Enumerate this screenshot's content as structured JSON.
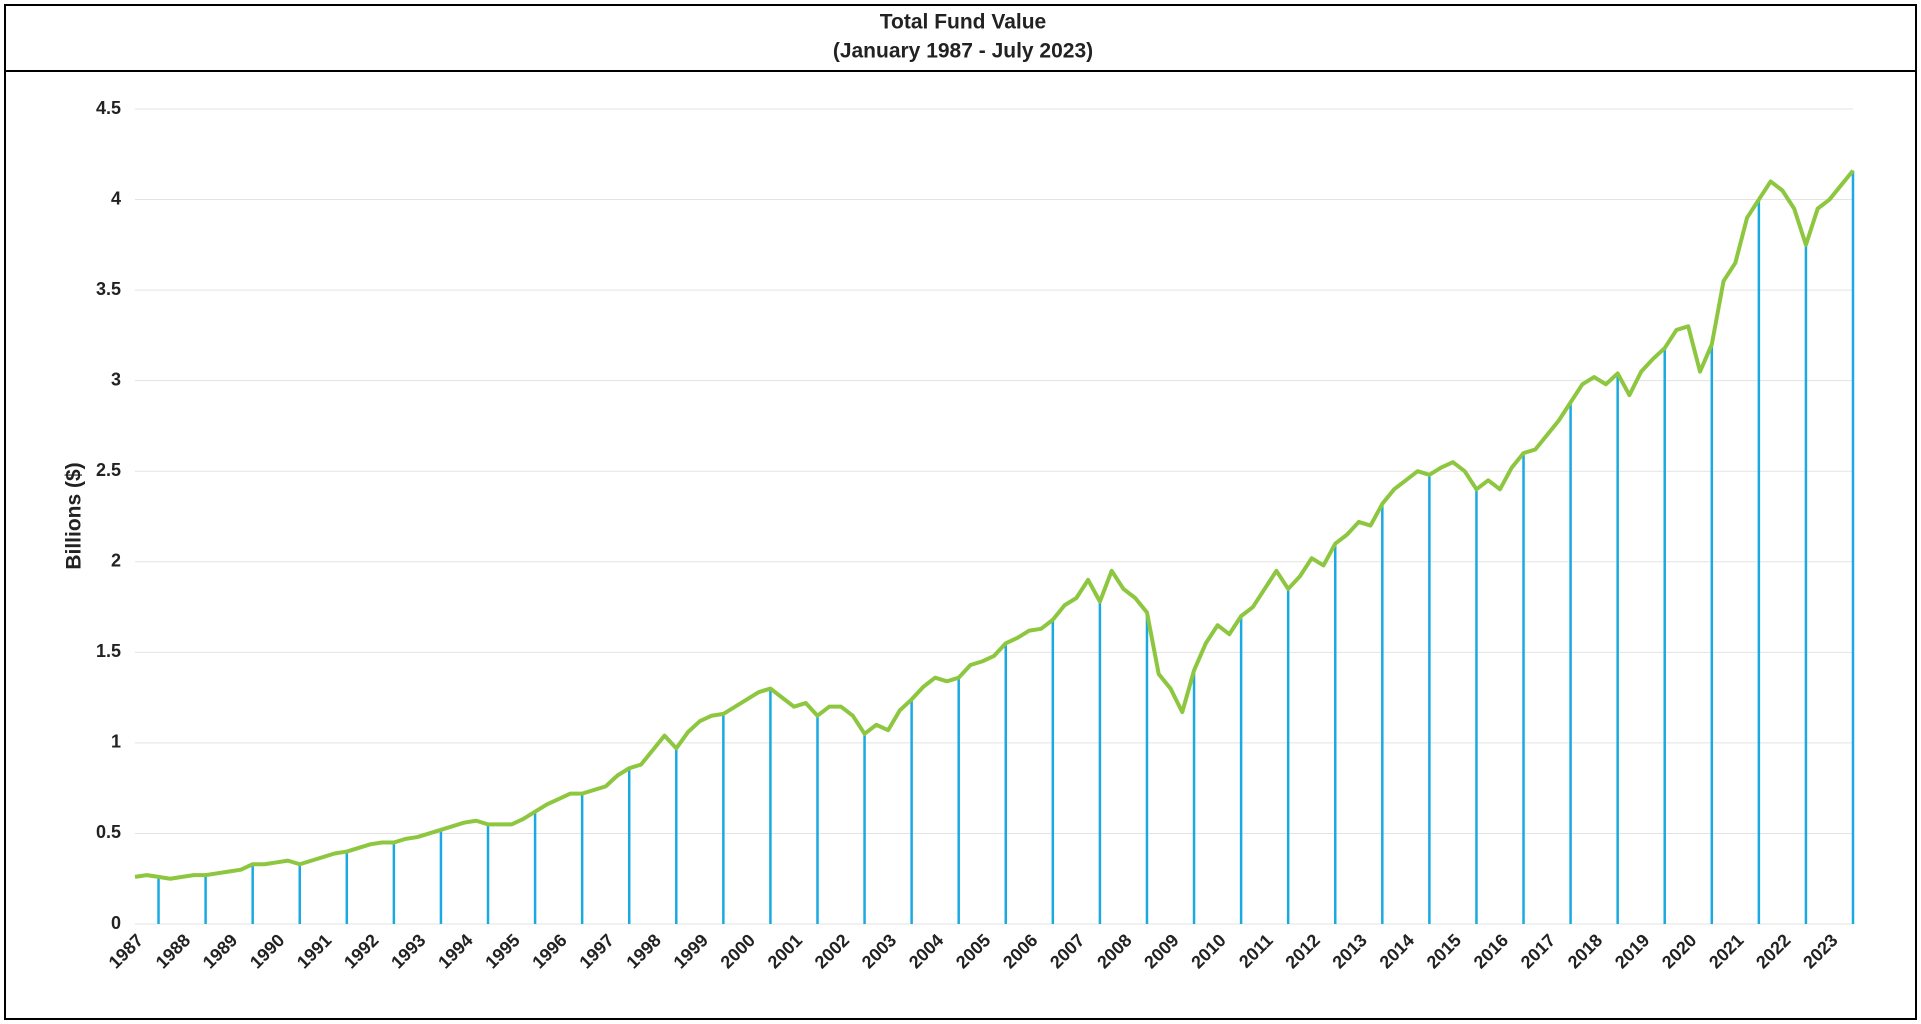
{
  "chart_data": {
    "type": "line",
    "title": "Total Fund Value",
    "subtitle": "(January 1987 - July 2023)",
    "y_label": "Billions ($)",
    "xlim": [
      1987,
      2023.5
    ],
    "xticks": [
      1987,
      1988,
      1989,
      1990,
      1991,
      1992,
      1993,
      1994,
      1995,
      1996,
      1997,
      1998,
      1999,
      2000,
      2001,
      2002,
      2003,
      2004,
      2005,
      2006,
      2007,
      2008,
      2009,
      2010,
      2011,
      2012,
      2013,
      2014,
      2015,
      2016,
      2017,
      2018,
      2019,
      2020,
      2021,
      2022,
      2023
    ],
    "ylim": [
      0,
      4.5
    ],
    "yticks": [
      0,
      0.5,
      1,
      1.5,
      2,
      2.5,
      3,
      3.5,
      4,
      4.5
    ],
    "grid": true,
    "series": [
      {
        "style": "line",
        "color": "#8dc63f",
        "x": [
          1987,
          1987.25,
          1987.5,
          1987.75,
          1988,
          1988.25,
          1988.5,
          1988.75,
          1989,
          1989.25,
          1989.5,
          1989.75,
          1990,
          1990.25,
          1990.5,
          1990.75,
          1991,
          1991.25,
          1991.5,
          1991.75,
          1992,
          1992.25,
          1992.5,
          1992.75,
          1993,
          1993.25,
          1993.5,
          1993.75,
          1994,
          1994.25,
          1994.5,
          1994.75,
          1995,
          1995.25,
          1995.5,
          1995.75,
          1996,
          1996.25,
          1996.5,
          1996.75,
          1997,
          1997.25,
          1997.5,
          1997.75,
          1998,
          1998.25,
          1998.5,
          1998.75,
          1999,
          1999.25,
          1999.5,
          1999.75,
          2000,
          2000.25,
          2000.5,
          2000.75,
          2001,
          2001.25,
          2001.5,
          2001.75,
          2002,
          2002.25,
          2002.5,
          2002.75,
          2003,
          2003.25,
          2003.5,
          2003.75,
          2004,
          2004.25,
          2004.5,
          2004.75,
          2005,
          2005.25,
          2005.5,
          2005.75,
          2006,
          2006.25,
          2006.5,
          2006.75,
          2007,
          2007.25,
          2007.5,
          2007.75,
          2008,
          2008.25,
          2008.5,
          2008.75,
          2009,
          2009.25,
          2009.5,
          2009.75,
          2010,
          2010.25,
          2010.5,
          2010.75,
          2011,
          2011.25,
          2011.5,
          2011.75,
          2012,
          2012.25,
          2012.5,
          2012.75,
          2013,
          2013.25,
          2013.5,
          2013.75,
          2014,
          2014.25,
          2014.5,
          2014.75,
          2015,
          2015.25,
          2015.5,
          2015.75,
          2016,
          2016.25,
          2016.5,
          2016.75,
          2017,
          2017.25,
          2017.5,
          2017.75,
          2018,
          2018.25,
          2018.5,
          2018.75,
          2019,
          2019.25,
          2019.5,
          2019.75,
          2020,
          2020.25,
          2020.5,
          2020.75,
          2021,
          2021.25,
          2021.5,
          2021.75,
          2022,
          2022.25,
          2022.5,
          2022.75,
          2023,
          2023.25,
          2023.5
        ],
        "values": [
          0.26,
          0.27,
          0.26,
          0.25,
          0.26,
          0.27,
          0.27,
          0.28,
          0.29,
          0.3,
          0.33,
          0.33,
          0.34,
          0.35,
          0.33,
          0.35,
          0.37,
          0.39,
          0.4,
          0.42,
          0.44,
          0.45,
          0.45,
          0.47,
          0.48,
          0.5,
          0.52,
          0.54,
          0.56,
          0.57,
          0.55,
          0.55,
          0.55,
          0.58,
          0.62,
          0.66,
          0.69,
          0.72,
          0.72,
          0.74,
          0.76,
          0.82,
          0.86,
          0.88,
          0.96,
          1.04,
          0.97,
          1.06,
          1.12,
          1.15,
          1.16,
          1.2,
          1.24,
          1.28,
          1.3,
          1.25,
          1.2,
          1.22,
          1.15,
          1.2,
          1.2,
          1.15,
          1.05,
          1.1,
          1.07,
          1.18,
          1.24,
          1.31,
          1.36,
          1.34,
          1.36,
          1.43,
          1.45,
          1.48,
          1.55,
          1.58,
          1.62,
          1.63,
          1.68,
          1.76,
          1.8,
          1.9,
          1.78,
          1.95,
          1.85,
          1.8,
          1.72,
          1.38,
          1.3,
          1.17,
          1.4,
          1.55,
          1.65,
          1.6,
          1.7,
          1.75,
          1.85,
          1.95,
          1.85,
          1.92,
          2.02,
          1.98,
          2.1,
          2.15,
          2.22,
          2.2,
          2.32,
          2.4,
          2.45,
          2.5,
          2.48,
          2.52,
          2.55,
          2.5,
          2.4,
          2.45,
          2.4,
          2.52,
          2.6,
          2.62,
          2.7,
          2.78,
          2.88,
          2.98,
          3.02,
          2.98,
          3.04,
          2.92,
          3.05,
          3.12,
          3.18,
          3.28,
          3.3,
          3.05,
          3.2,
          3.55,
          3.65,
          3.9,
          4.0,
          4.1,
          4.05,
          3.95,
          3.75,
          3.95,
          4.0,
          4.08,
          4.16
        ]
      },
      {
        "style": "stem",
        "color": "#1ba9e1",
        "x": [
          1987.5,
          1988.5,
          1989.5,
          1990.5,
          1991.5,
          1992.5,
          1993.5,
          1994.5,
          1995.5,
          1996.5,
          1997.5,
          1998.5,
          1999.5,
          2000.5,
          2001.5,
          2002.5,
          2003.5,
          2004.5,
          2005.5,
          2006.5,
          2007.5,
          2008.5,
          2009.5,
          2010.5,
          2011.5,
          2012.5,
          2013.5,
          2014.5,
          2015.5,
          2016.5,
          2017.5,
          2018.5,
          2019.5,
          2020.5,
          2021.5,
          2022.5,
          2023.5
        ],
        "values": [
          0.26,
          0.27,
          0.33,
          0.33,
          0.4,
          0.45,
          0.52,
          0.55,
          0.62,
          0.72,
          0.86,
          0.97,
          1.16,
          1.3,
          1.15,
          1.05,
          1.24,
          1.36,
          1.55,
          1.68,
          1.78,
          1.72,
          1.4,
          1.7,
          1.85,
          2.1,
          2.32,
          2.48,
          2.4,
          2.6,
          2.88,
          3.04,
          3.18,
          3.2,
          4.0,
          3.75,
          4.16
        ]
      }
    ]
  }
}
